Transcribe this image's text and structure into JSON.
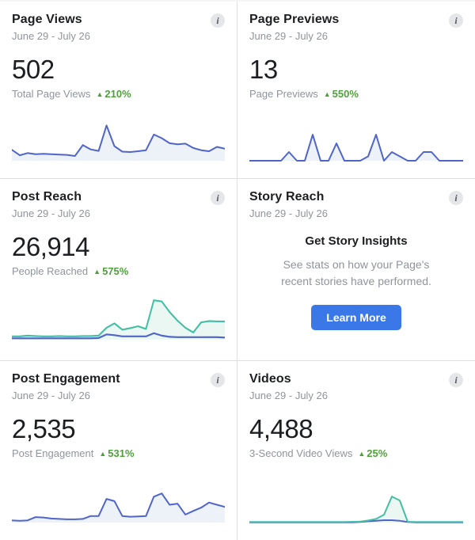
{
  "icons": {
    "info_glyph": "i",
    "up_arrow_glyph": "▲"
  },
  "colors": {
    "chart_blue": "#5065ca",
    "chart_blue_fill": "#edf1f8",
    "chart_green": "#44bfa3",
    "chart_green_fill": "#eaf7f2",
    "positive_delta_green": "#4fa03c",
    "button_blue": "#3a78e8"
  },
  "cards": [
    {
      "title": "Page Views",
      "date_range": "June 29 - July 26",
      "value": "502",
      "metric_label": "Total Page Views",
      "delta": "210%",
      "delta_direction": "up"
    },
    {
      "title": "Page Previews",
      "date_range": "June 29 - July 26",
      "value": "13",
      "metric_label": "Page Previews",
      "delta": "550%",
      "delta_direction": "up"
    },
    {
      "title": "Post Reach",
      "date_range": "June 29 - July 26",
      "value": "26,914",
      "metric_label": "People Reached",
      "delta": "575%",
      "delta_direction": "up"
    },
    {
      "title": "Story Reach",
      "date_range": "June 29 - July 26",
      "headline": "Get Story Insights",
      "description": "See stats on how your Page's recent stories have performed.",
      "button_label": "Learn More"
    },
    {
      "title": "Post Engagement",
      "date_range": "June 29 - July 26",
      "value": "2,535",
      "metric_label": "Post Engagement",
      "delta": "531%",
      "delta_direction": "up"
    },
    {
      "title": "Videos",
      "date_range": "June 29 - July 26",
      "value": "4,488",
      "metric_label": "3-Second Video Views",
      "delta": "25%",
      "delta_direction": "up"
    }
  ],
  "chart_data": [
    {
      "card": "Page Views",
      "type": "area",
      "x_range": "June 29 - July 26",
      "ymax": 100,
      "grid": false,
      "legend": false,
      "series": [
        {
          "name": "blue",
          "color": "#5065ca",
          "fill": "#edf1f8",
          "values": [
            30,
            15,
            21,
            18,
            19,
            18,
            17,
            16,
            13,
            43,
            31,
            27,
            97,
            40,
            25,
            24,
            26,
            29,
            72,
            62,
            48,
            45,
            47,
            35,
            29,
            26,
            38,
            33
          ]
        }
      ]
    },
    {
      "card": "Page Previews",
      "type": "area",
      "x_range": "June 29 - July 26",
      "ymax": 4.2,
      "grid": false,
      "legend": false,
      "series": [
        {
          "name": "blue",
          "color": "#5065ca",
          "fill": "#edf1f8",
          "values": [
            0,
            0,
            0,
            0,
            0,
            1,
            0,
            0,
            3,
            0,
            0,
            2,
            0,
            0,
            0,
            0.5,
            3,
            0,
            1,
            0.5,
            0,
            0,
            1,
            1,
            0,
            0,
            0,
            0
          ]
        }
      ]
    },
    {
      "card": "Post Reach",
      "type": "area",
      "x_range": "June 29 - July 26",
      "ymax": 100,
      "grid": false,
      "legend": false,
      "series": [
        {
          "name": "green",
          "color": "#44bfa3",
          "fill": "#eaf7f2",
          "values": [
            8,
            8,
            10,
            9,
            8,
            8,
            9,
            8,
            8,
            9,
            9,
            10,
            30,
            41,
            25,
            29,
            34,
            27,
            100,
            97,
            70,
            48,
            30,
            18,
            44,
            47,
            46,
            46
          ]
        },
        {
          "name": "blue",
          "color": "#5065ca",
          "values": [
            3,
            3,
            3,
            3,
            3,
            3,
            3,
            3,
            3,
            3,
            3,
            4,
            13,
            11,
            8,
            8,
            8,
            8,
            16,
            10,
            7,
            6,
            6,
            6,
            6,
            6,
            6,
            5
          ]
        }
      ]
    },
    {
      "card": "Post Engagement",
      "type": "area",
      "x_range": "June 29 - July 26",
      "ymax": 100,
      "grid": false,
      "legend": false,
      "series": [
        {
          "name": "blue",
          "color": "#5065ca",
          "fill": "#edf1f8",
          "values": [
            6,
            5,
            6,
            15,
            14,
            11,
            10,
            9,
            9,
            10,
            18,
            18,
            65,
            59,
            18,
            16,
            17,
            18,
            71,
            80,
            49,
            52,
            22,
            32,
            41,
            55,
            49,
            43
          ]
        }
      ]
    },
    {
      "card": "Videos",
      "type": "area",
      "x_range": "June 29 - July 26",
      "ymax": 140,
      "grid": false,
      "legend": false,
      "series": [
        {
          "name": "blue",
          "color": "#5065ca",
          "values": [
            1,
            1,
            1,
            1,
            1,
            1,
            1,
            1,
            1,
            1,
            1,
            1,
            1,
            1,
            2,
            5,
            7,
            9,
            9,
            7,
            2,
            1,
            1,
            1,
            1,
            1,
            1,
            1
          ]
        },
        {
          "name": "green",
          "color": "#44bfa3",
          "fill": "#eaf7f2",
          "values": [
            2,
            2,
            2,
            2,
            2,
            2,
            2,
            2,
            2,
            2,
            2,
            2,
            2,
            3,
            4,
            8,
            14,
            30,
            100,
            85,
            3,
            2,
            2,
            2,
            2,
            2,
            2,
            2
          ]
        }
      ]
    }
  ]
}
